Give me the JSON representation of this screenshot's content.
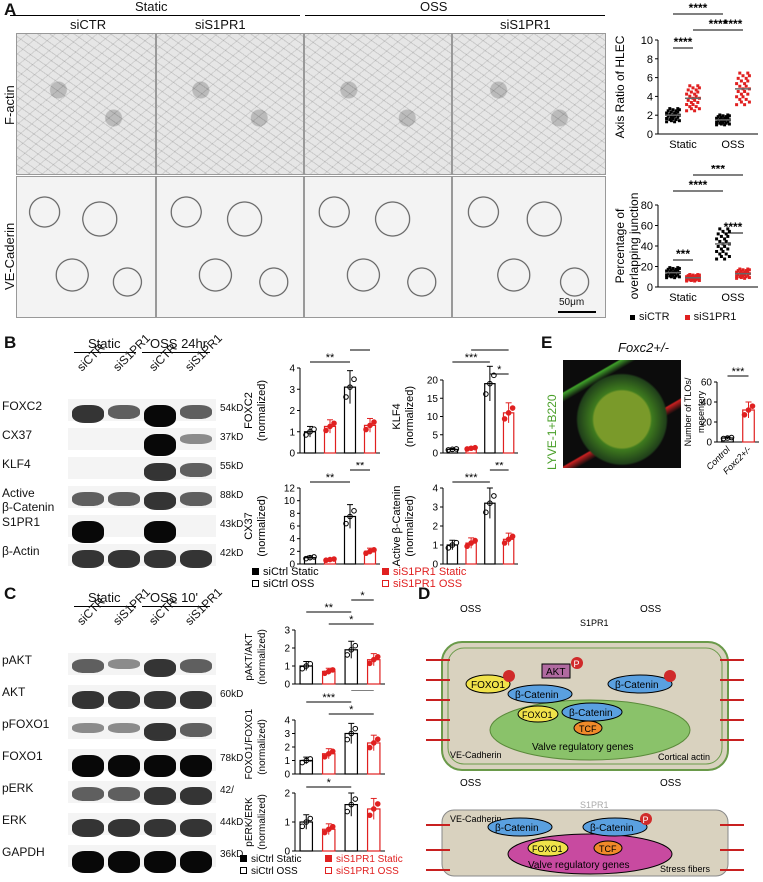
{
  "panels": {
    "A": {
      "label": "A",
      "group_static": "Static",
      "group_oss": "OSS",
      "col_sictr": "siCTR",
      "col_sis1pr1_static": "siS1PR1",
      "col_sis1pr1_oss": "siS1PR1",
      "row_factin": "F-actin",
      "row_vecad": "VE-Caderin",
      "scalebar": "50μm",
      "legend": {
        "sictr": "siCTR",
        "sis1pr1": "siS1PR1"
      }
    },
    "B": {
      "label": "B",
      "group_static": "Static",
      "group_oss": "OSS 24hr",
      "lanes": [
        "siCTR",
        "siS1PR1",
        "siCTR",
        "siS1PR1"
      ],
      "blots": [
        {
          "name": "FOXC2",
          "kd": "54kD"
        },
        {
          "name": "CX37",
          "kd": "37kD"
        },
        {
          "name": "KLF4",
          "kd": "55kD"
        },
        {
          "name": "Active\nβ-Catenin",
          "kd": "88kD"
        },
        {
          "name": "S1PR1",
          "kd": "43kD"
        },
        {
          "name": "β-Actin",
          "kd": "42kD"
        }
      ],
      "legend": [
        "siCtrl Static",
        "siS1PR1 Static",
        "siCtrl OSS",
        "siS1PR1 OSS"
      ]
    },
    "C": {
      "label": "C",
      "group_static": "Static",
      "group_oss": "OSS 10'",
      "lanes": [
        "siCTR",
        "siS1PR1",
        "siCTR",
        "siS1PR1"
      ],
      "blots": [
        {
          "name": "pAKT",
          "kd": ""
        },
        {
          "name": "AKT",
          "kd": "60kD"
        },
        {
          "name": "pFOXO1",
          "kd": ""
        },
        {
          "name": "FOXO1",
          "kd": "78kD"
        },
        {
          "name": "pERK",
          "kd": "42/"
        },
        {
          "name": "ERK",
          "kd": "44kD"
        },
        {
          "name": "GAPDH",
          "kd": "36kD"
        }
      ],
      "legend": [
        "siCtrl Static",
        "siS1PR1 Static",
        "siCtrl OSS",
        "siS1PR1 OSS"
      ]
    },
    "D": {
      "label": "D",
      "top": {
        "oss_left": "OSS",
        "oss_right": "OSS",
        "s1pr1": "S1PR1",
        "akt": "AKT",
        "foxo1": "FOXO1",
        "p": "P",
        "bcat1": "β-Catenin",
        "bcat2": "β-Catenin",
        "foxo1_nuc": "FOXO1",
        "bcat_nuc": "β-Catenin",
        "tcf": "TCF",
        "valve": "Valve regulatory genes",
        "vecad": "VE-Cadherin",
        "cortical": "Cortical actin"
      },
      "bottom": {
        "oss_left": "OSS",
        "oss_right": "OSS",
        "s1pr1": "S1PR1",
        "vecad": "VE-Cadherin",
        "bcat1": "β-Catenin",
        "bcat2": "β-Catenin",
        "p": "P",
        "foxo1": "FOXO1",
        "tcf": "TCF",
        "valve": "Valve regulatory genes",
        "stress": "Stress fibers"
      }
    },
    "E": {
      "label": "E",
      "title": "Foxc2+/-",
      "ylabel": "LYVE-1+B220",
      "chart_ylabel": "Number of TLOs/\nmesentery",
      "sig": "***",
      "xcats": [
        "Control",
        "Foxc2+/-"
      ]
    }
  },
  "chart_data": [
    {
      "type": "scatter",
      "id": "axis-ratio",
      "ylabel": "Axis Ratio of HLEC",
      "categories": [
        "Static",
        "OSS"
      ],
      "ylim": [
        0,
        10
      ],
      "yticks": [
        0,
        2,
        4,
        6,
        8,
        10
      ],
      "series": [
        {
          "name": "siCTR",
          "values": [
            2.0,
            1.5
          ],
          "color": "#000000"
        },
        {
          "name": "siS1PR1",
          "values": [
            3.8,
            4.8
          ],
          "color": "#e02020"
        }
      ],
      "sig": [
        "****",
        "****",
        "****",
        "****"
      ]
    },
    {
      "type": "scatter",
      "id": "overlap-junction",
      "ylabel": "Percentage of\noverlapping junction",
      "categories": [
        "Static",
        "OSS"
      ],
      "ylim": [
        0,
        80
      ],
      "yticks": [
        0,
        20,
        40,
        60,
        80
      ],
      "series": [
        {
          "name": "siCTR",
          "values": [
            14,
            42
          ],
          "color": "#000000"
        },
        {
          "name": "siS1PR1",
          "values": [
            9,
            13
          ],
          "color": "#e02020"
        }
      ],
      "sig": [
        "***",
        "****",
        "****",
        "***"
      ]
    },
    {
      "type": "bar",
      "id": "foxc2",
      "ylabel": "FOXC2\n(normalized)",
      "ylim": [
        0,
        4
      ],
      "yticks": [
        0,
        1,
        2,
        3,
        4
      ],
      "values": [
        1.0,
        1.25,
        3.1,
        1.3
      ],
      "sig": [
        "**",
        "**"
      ]
    },
    {
      "type": "bar",
      "id": "klf4",
      "ylabel": "KLF4\n(normalized)",
      "ylim": [
        0,
        20
      ],
      "yticks": [
        0,
        5,
        10,
        15,
        20
      ],
      "values": [
        1.0,
        1.3,
        19,
        11
      ],
      "sig": [
        "*",
        "***",
        "*"
      ]
    },
    {
      "type": "bar",
      "id": "cx37",
      "ylabel": "CX37\n(normalized)",
      "ylim": [
        0,
        12
      ],
      "yticks": [
        0,
        2,
        4,
        6,
        8,
        10,
        12
      ],
      "values": [
        1.0,
        0.7,
        7.5,
        2.0
      ],
      "sig": [
        "**",
        "**"
      ]
    },
    {
      "type": "bar",
      "id": "bcat",
      "ylabel": "Active β-Catenin\n(normalized)",
      "ylim": [
        0,
        4
      ],
      "yticks": [
        0,
        1,
        2,
        3,
        4
      ],
      "values": [
        1.0,
        1.1,
        3.2,
        1.3
      ],
      "sig": [
        "***",
        "**"
      ]
    },
    {
      "type": "bar",
      "id": "pakt",
      "ylabel": "pAKT/AKT\n(normalized)",
      "ylim": [
        0,
        3
      ],
      "yticks": [
        0,
        1,
        2,
        3
      ],
      "values": [
        1.0,
        0.7,
        1.9,
        1.35
      ],
      "sig": [
        "*",
        "**",
        "*"
      ]
    },
    {
      "type": "bar",
      "id": "pfoxo1",
      "ylabel": "pFOXO1/FOXO1\n(normalized)",
      "ylim": [
        0,
        4
      ],
      "yticks": [
        0,
        1,
        2,
        3,
        4
      ],
      "values": [
        1.0,
        1.5,
        3.0,
        2.3
      ],
      "sig": [
        "*",
        "***",
        "*"
      ]
    },
    {
      "type": "bar",
      "id": "perk",
      "ylabel": "pERK/ERK\n(normalized)",
      "ylim": [
        0,
        2
      ],
      "yticks": [
        0,
        1,
        2
      ],
      "values": [
        1.0,
        0.75,
        1.6,
        1.45
      ],
      "sig": [
        "*"
      ]
    },
    {
      "type": "bar",
      "id": "tlo",
      "ylabel": "Number of TLOs/\nmesentery",
      "categories": [
        "Control",
        "Foxc2+/-"
      ],
      "ylim": [
        0,
        60
      ],
      "yticks": [
        0,
        20,
        40,
        60
      ],
      "values": [
        4,
        32
      ],
      "sig": [
        "***"
      ]
    }
  ]
}
